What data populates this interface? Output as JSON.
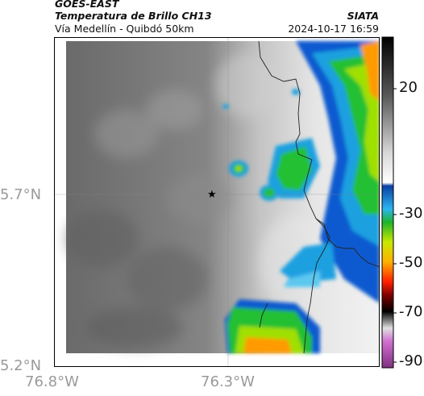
{
  "header": {
    "satellite": "GOES-EAST",
    "product": "Temperatura de Brillo CH13",
    "region": "Vía Medellín - Quibdó 50km",
    "organization": "SIATA",
    "datetime": "2024-10-17 16:59"
  },
  "axes": {
    "lat_labels": [
      "5.7°N",
      "5.2°N"
    ],
    "lon_labels": [
      "76.8°W",
      "76.3°W"
    ]
  },
  "colorbar": {
    "ticks": [
      "20",
      "-30",
      "-50",
      "-70",
      "-90"
    ]
  },
  "marker": {
    "symbol": "★"
  }
}
